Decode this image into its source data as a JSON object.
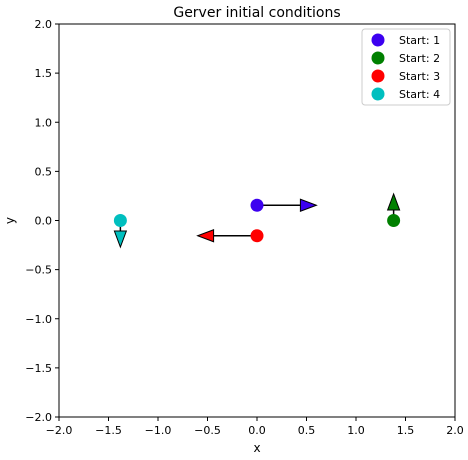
{
  "chart_data": {
    "type": "scatter",
    "title": "Gerver initial conditions",
    "xlabel": "x",
    "ylabel": "y",
    "xlim": [
      -2.0,
      2.0
    ],
    "ylim": [
      -2.0,
      2.0
    ],
    "x_ticks": [
      "−2.0",
      "−1.5",
      "−1.0",
      "−0.5",
      "0.0",
      "0.5",
      "1.0",
      "1.5",
      "2.0"
    ],
    "y_ticks": [
      "−2.0",
      "−1.5",
      "−1.0",
      "−0.5",
      "0.0",
      "0.5",
      "1.0",
      "1.5",
      "2.0"
    ],
    "x_tick_values": [
      -2.0,
      -1.5,
      -1.0,
      -0.5,
      0.0,
      0.5,
      1.0,
      1.5,
      2.0
    ],
    "y_tick_values": [
      -2.0,
      -1.5,
      -1.0,
      -0.5,
      0.0,
      0.5,
      1.0,
      1.5,
      2.0
    ],
    "grid": false,
    "legend_position": "top-right",
    "series": [
      {
        "name": "Start: 1",
        "color": "#3c00f0",
        "x": 0.0,
        "y": 0.155,
        "vx": 0.6,
        "vy": 0.0
      },
      {
        "name": "Start: 2",
        "color": "#008000",
        "x": 1.38,
        "y": 0.0,
        "vx": 0.0,
        "vy": 0.27
      },
      {
        "name": "Start: 3",
        "color": "#ff0000",
        "x": 0.0,
        "y": -0.155,
        "vx": -0.6,
        "vy": 0.0
      },
      {
        "name": "Start: 4",
        "color": "#00bfbf",
        "x": -1.38,
        "y": 0.0,
        "vx": 0.0,
        "vy": -0.27
      }
    ]
  }
}
